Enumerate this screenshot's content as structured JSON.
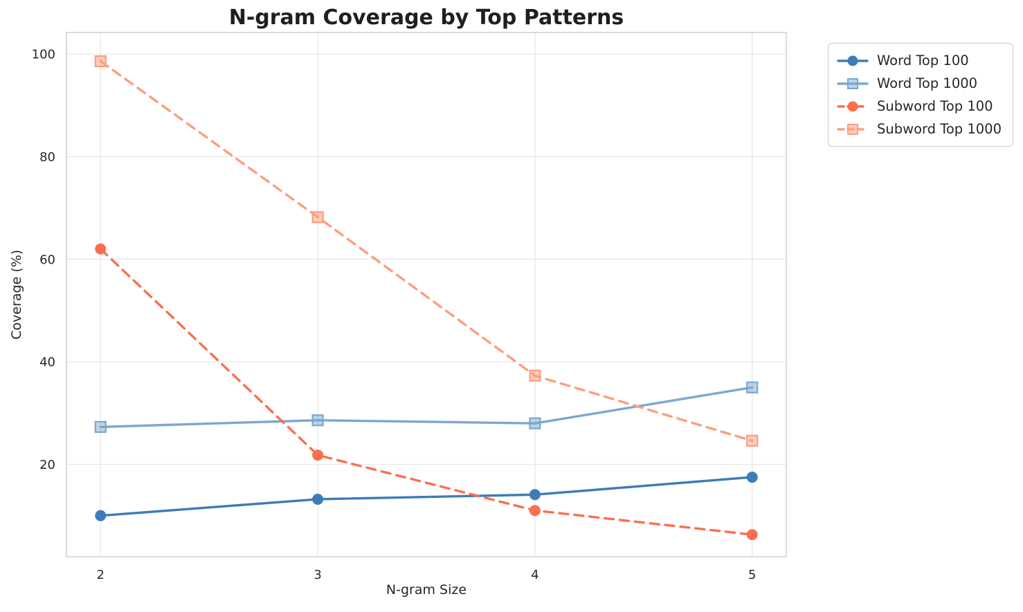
{
  "chart_data": {
    "type": "line",
    "title": "N-gram Coverage by Top Patterns",
    "xlabel": "N-gram Size",
    "ylabel": "Coverage (%)",
    "x": [
      2,
      3,
      4,
      5
    ],
    "xticks": [
      "2",
      "3",
      "4",
      "5"
    ],
    "yticks": [
      20,
      40,
      60,
      80,
      100
    ],
    "xlim": [
      1.843,
      5.157
    ],
    "ylim": [
      2.0,
      104.2
    ],
    "grid": true,
    "legend_position": "outside-top-right",
    "series": [
      {
        "name": "Word Top 100",
        "values": [
          10.0,
          13.2,
          14.1,
          17.5
        ],
        "color": "#3E7CB7",
        "marker": "circle",
        "dash": false
      },
      {
        "name": "Word Top 1000",
        "values": [
          27.3,
          28.6,
          28.0,
          35.0
        ],
        "color": "#7CA7CE",
        "marker": "square",
        "dash": false
      },
      {
        "name": "Subword Top 100",
        "values": [
          62.0,
          21.8,
          11.0,
          6.3
        ],
        "color": "#FB6E4E",
        "marker": "circle",
        "dash": true
      },
      {
        "name": "Subword Top 1000",
        "values": [
          98.6,
          68.2,
          37.3,
          24.6
        ],
        "color": "#FC9E7E",
        "marker": "square",
        "dash": true
      }
    ],
    "colors": {
      "text": "#262626",
      "title": "#1f1f1f",
      "grid": "#e7e7e7",
      "spine": "#cfcfcf",
      "legend_border": "#cccccc",
      "background": "#ffffff"
    }
  }
}
